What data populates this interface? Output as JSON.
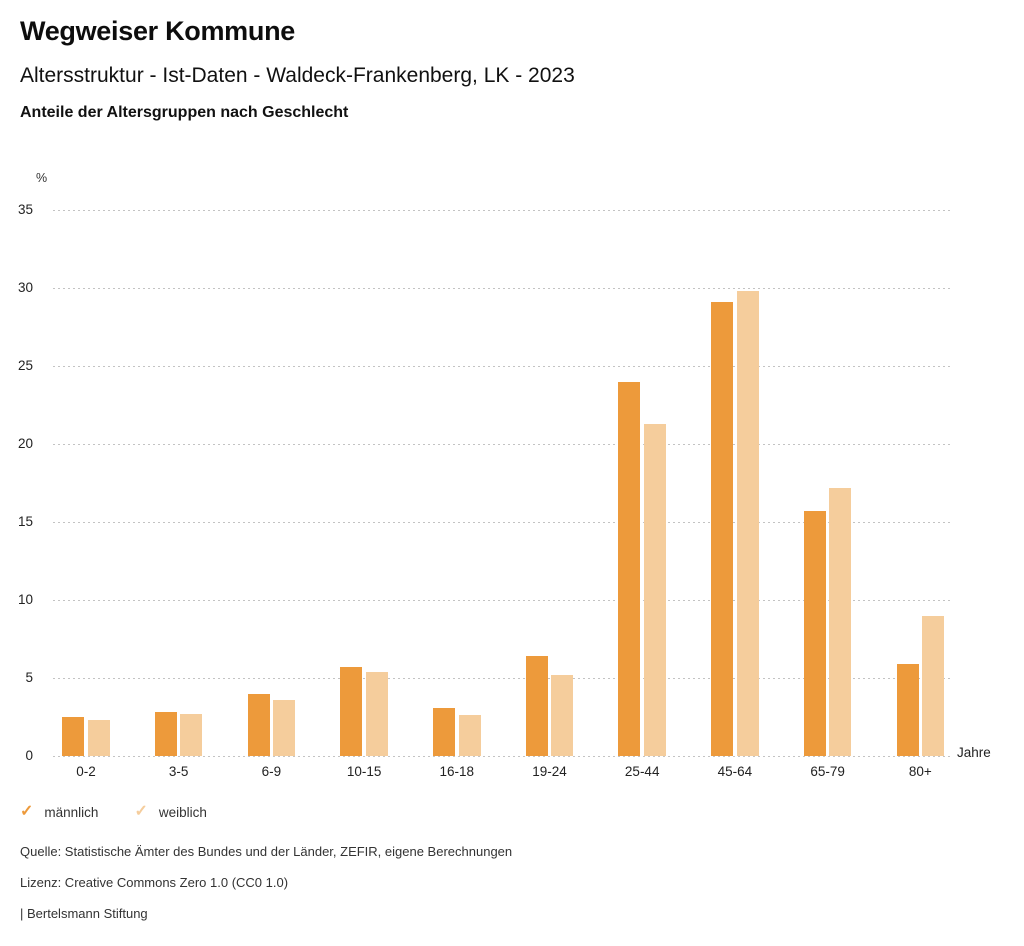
{
  "header": {
    "title": "Wegweiser Kommune",
    "subtitle": "Altersstruktur - Ist-Daten - Waldeck-Frankenberg, LK - 2023",
    "description": "Anteile der Altersgruppen nach Geschlecht"
  },
  "chart_data": {
    "type": "bar",
    "title": "Anteile der Altersgruppen nach Geschlecht",
    "ylabel": "%",
    "xlabel": "Jahre",
    "categories": [
      "0-2",
      "3-5",
      "6-9",
      "10-15",
      "16-18",
      "19-24",
      "25-44",
      "45-64",
      "65-79",
      "80+"
    ],
    "series": [
      {
        "name": "männlich",
        "color": "#ED9A3B",
        "values": [
          2.5,
          2.8,
          4.0,
          5.7,
          3.1,
          6.4,
          24.0,
          29.1,
          15.7,
          5.9
        ]
      },
      {
        "name": "weiblich",
        "color": "#F5CD9C",
        "values": [
          2.3,
          2.7,
          3.6,
          5.4,
          2.6,
          5.2,
          21.3,
          29.8,
          17.2,
          9.0
        ]
      }
    ],
    "ylim": [
      0,
      35
    ],
    "yticks": [
      0,
      5,
      10,
      15,
      20,
      25,
      30,
      35
    ],
    "grid": "horizontal-dotted",
    "legend_position": "bottom-left"
  },
  "legend": {
    "items": [
      {
        "label": "männlich",
        "color": "#ED9A3B"
      },
      {
        "label": "weiblich",
        "color": "#F5CD9C"
      }
    ]
  },
  "footer": {
    "source": "Quelle: Statistische Ämter des Bundes und der Länder, ZEFIR, eigene Berechnungen",
    "license": "Lizenz: Creative Commons Zero 1.0 (CC0 1.0)",
    "attribution": "| Bertelsmann Stiftung"
  },
  "colors": {
    "grid": "#c3c3c3",
    "text": "#111111",
    "axis_text": "#222222"
  }
}
